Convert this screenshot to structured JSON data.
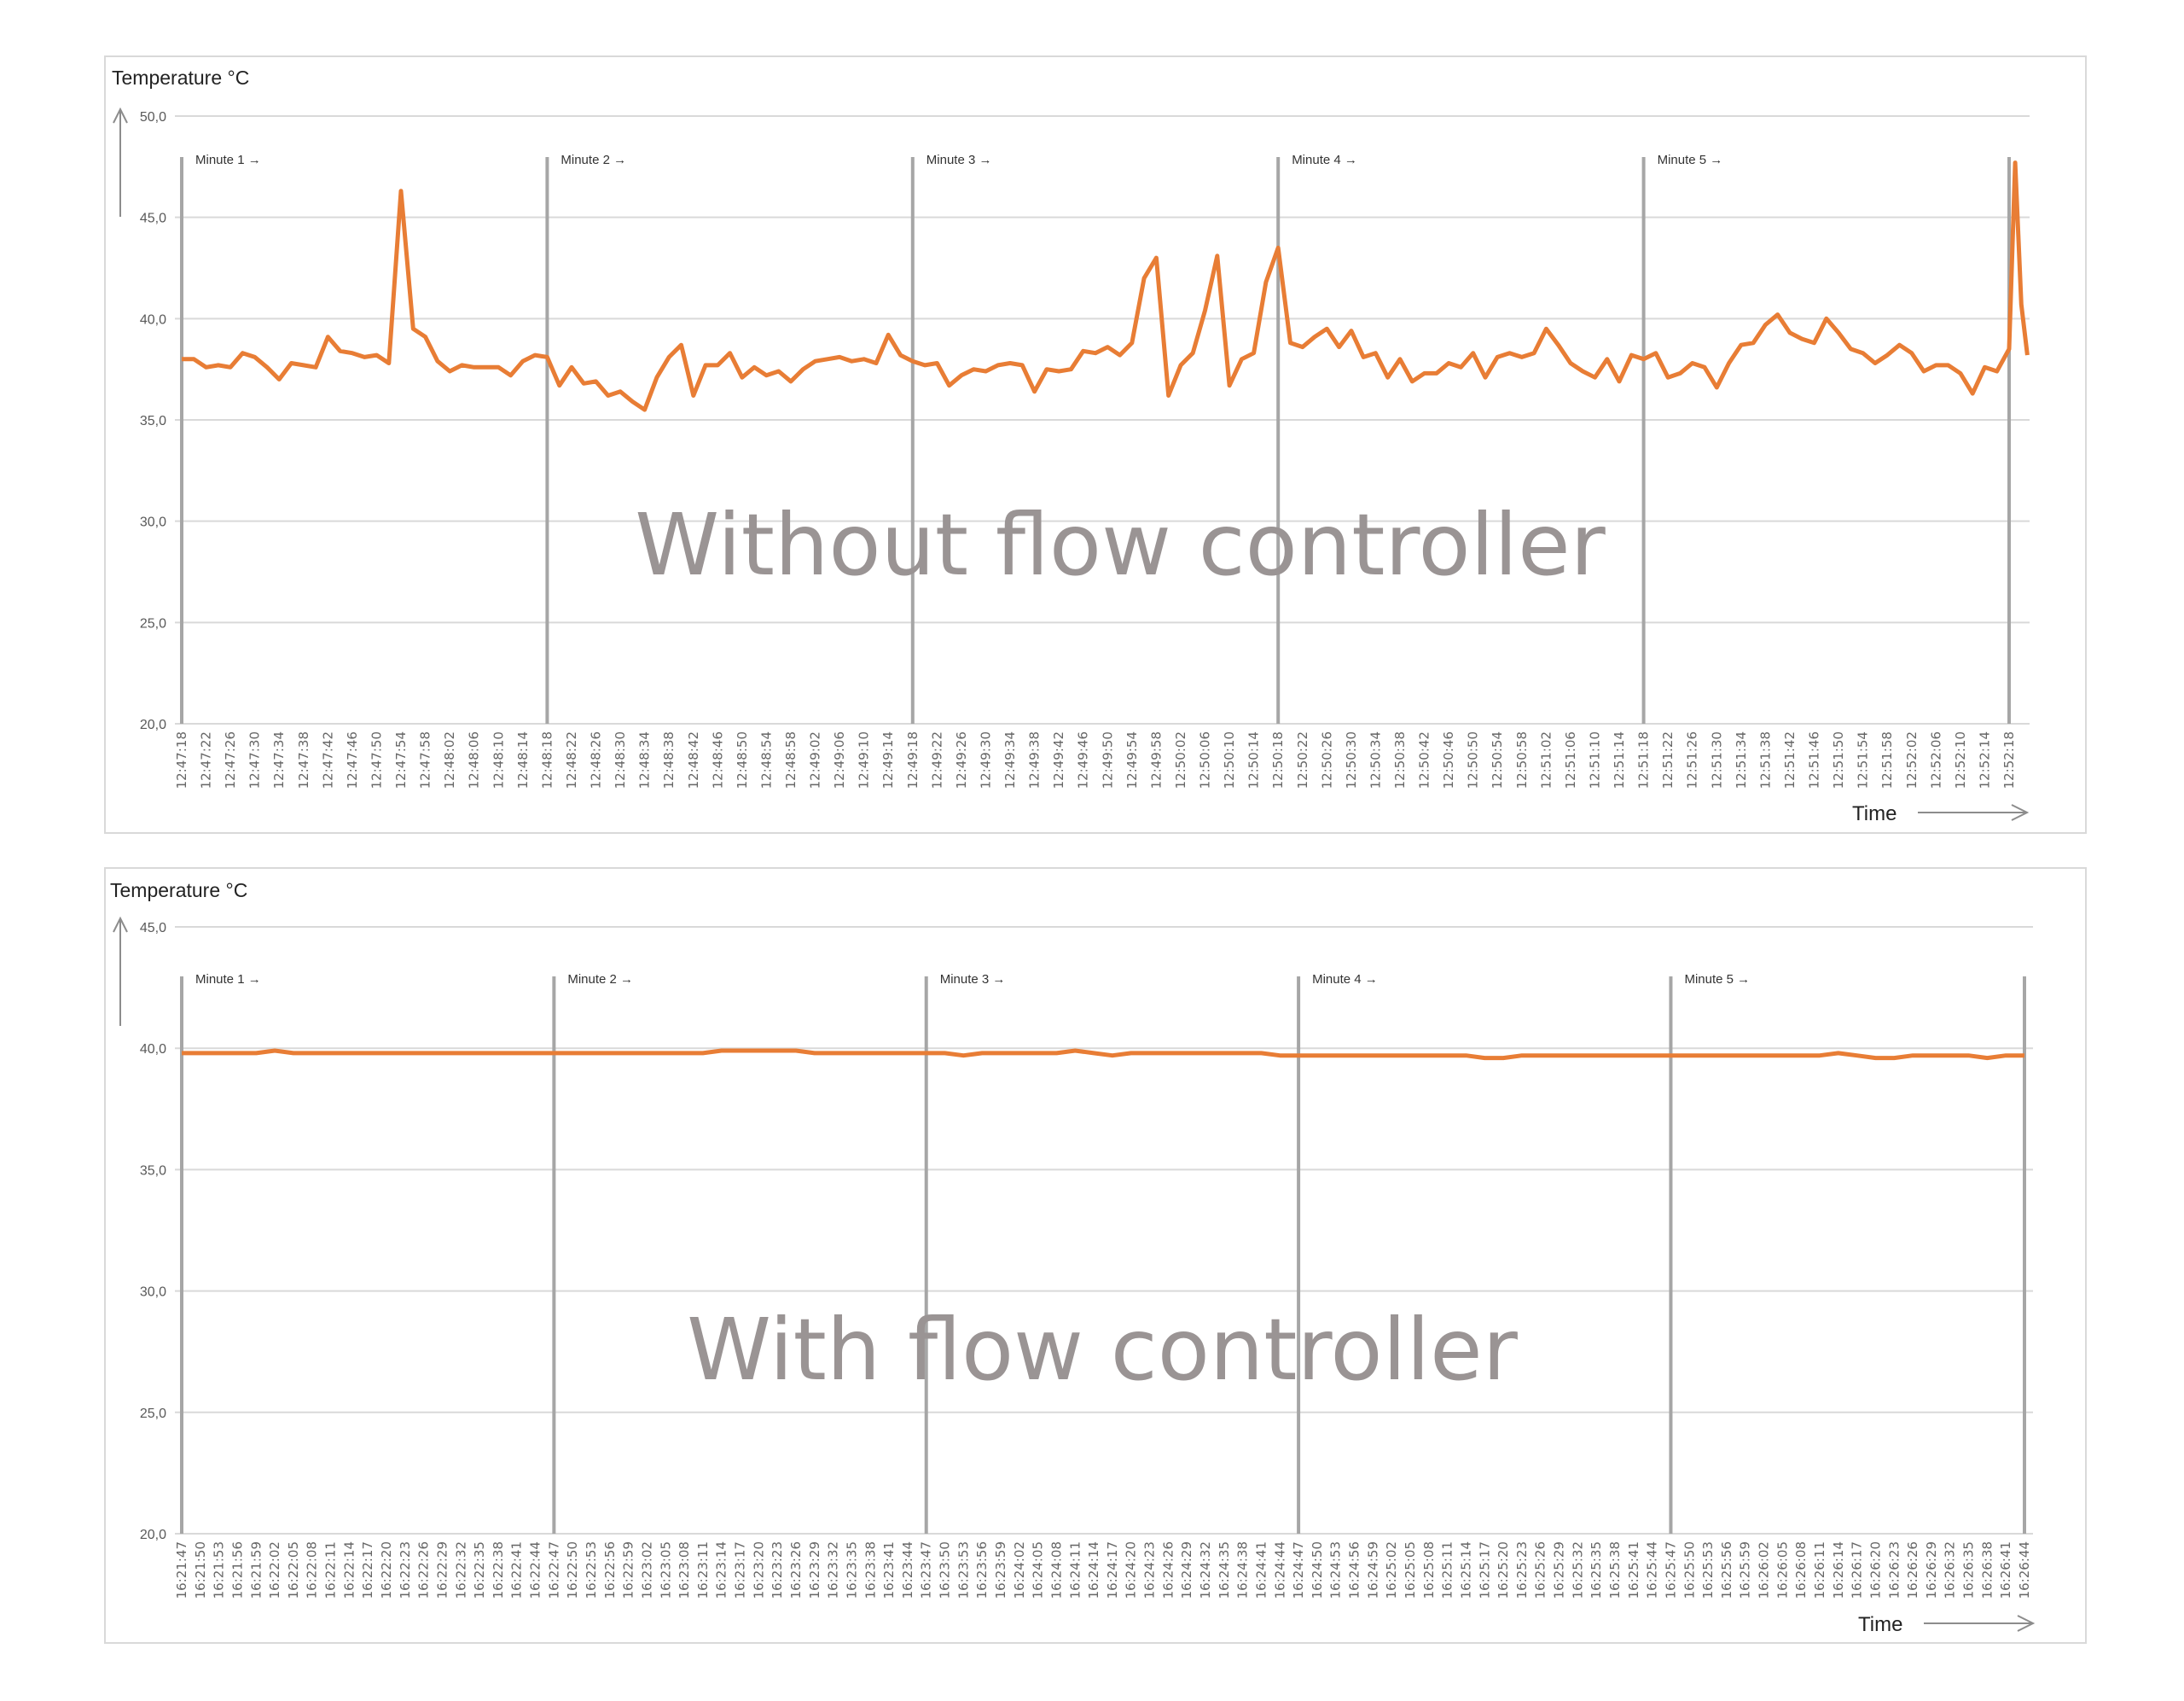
{
  "chart_data": [
    {
      "type": "line",
      "title": "Temperature °C",
      "annotation": "Without flow controller",
      "xlabel": "Time",
      "ylabel": "Temperature °C",
      "ylim": [
        20,
        50
      ],
      "yticks": [
        "20,0",
        "25,0",
        "30,0",
        "35,0",
        "40,0",
        "45,0",
        "50,0"
      ],
      "ytick_values": [
        20,
        25,
        30,
        35,
        40,
        45,
        50
      ],
      "grid": true,
      "line_color": "#E87D35",
      "xticks": [
        "12:47:18",
        "12:47:22",
        "12:47:26",
        "12:47:30",
        "12:47:34",
        "12:47:38",
        "12:47:42",
        "12:47:46",
        "12:47:50",
        "12:47:54",
        "12:47:58",
        "12:48:02",
        "12:48:06",
        "12:48:10",
        "12:48:14",
        "12:48:18",
        "12:48:22",
        "12:48:26",
        "12:48:30",
        "12:48:34",
        "12:48:38",
        "12:48:42",
        "12:48:46",
        "12:48:50",
        "12:48:54",
        "12:48:58",
        "12:49:02",
        "12:49:06",
        "12:49:10",
        "12:49:14",
        "12:49:18",
        "12:49:22",
        "12:49:26",
        "12:49:30",
        "12:49:34",
        "12:49:38",
        "12:49:42",
        "12:49:46",
        "12:49:50",
        "12:49:54",
        "12:49:58",
        "12:50:02",
        "12:50:06",
        "12:50:10",
        "12:50:14",
        "12:50:18",
        "12:50:22",
        "12:50:26",
        "12:50:30",
        "12:50:34",
        "12:50:38",
        "12:50:42",
        "12:50:46",
        "12:50:50",
        "12:50:54",
        "12:50:58",
        "12:51:02",
        "12:51:06",
        "12:51:10",
        "12:51:14",
        "12:51:18",
        "12:51:22",
        "12:51:26",
        "12:51:30",
        "12:51:34",
        "12:51:38",
        "12:51:42",
        "12:51:46",
        "12:51:50",
        "12:51:54",
        "12:51:58",
        "12:52:02",
        "12:52:06",
        "12:52:10",
        "12:52:14",
        "12:52:18"
      ],
      "markers": [
        {
          "x": "12:47:18",
          "label": "Minute 1 →"
        },
        {
          "x": "12:48:18",
          "label": "Minute 2 →"
        },
        {
          "x": "12:49:18",
          "label": "Minute 3 →"
        },
        {
          "x": "12:50:18",
          "label": "Minute 4 →"
        },
        {
          "x": "12:51:18",
          "label": "Minute 5 →"
        },
        {
          "x": "12:52:18",
          "label": ""
        }
      ],
      "x": [
        "12:47:18",
        "12:47:20",
        "12:47:22",
        "12:47:24",
        "12:47:26",
        "12:47:28",
        "12:47:30",
        "12:47:32",
        "12:47:34",
        "12:47:36",
        "12:47:38",
        "12:47:40",
        "12:47:42",
        "12:47:44",
        "12:47:46",
        "12:47:48",
        "12:47:50",
        "12:47:52",
        "12:47:54",
        "12:47:56",
        "12:47:58",
        "12:48:00",
        "12:48:02",
        "12:48:04",
        "12:48:06",
        "12:48:08",
        "12:48:10",
        "12:48:12",
        "12:48:14",
        "12:48:16",
        "12:48:18",
        "12:48:20",
        "12:48:22",
        "12:48:24",
        "12:48:26",
        "12:48:28",
        "12:48:30",
        "12:48:32",
        "12:48:34",
        "12:48:36",
        "12:48:38",
        "12:48:40",
        "12:48:42",
        "12:48:44",
        "12:48:46",
        "12:48:48",
        "12:48:50",
        "12:48:52",
        "12:48:54",
        "12:48:56",
        "12:48:58",
        "12:49:00",
        "12:49:02",
        "12:49:04",
        "12:49:06",
        "12:49:08",
        "12:49:10",
        "12:49:12",
        "12:49:14",
        "12:49:16",
        "12:49:18",
        "12:49:20",
        "12:49:22",
        "12:49:24",
        "12:49:26",
        "12:49:28",
        "12:49:30",
        "12:49:32",
        "12:49:34",
        "12:49:36",
        "12:49:38",
        "12:49:40",
        "12:49:42",
        "12:49:44",
        "12:49:46",
        "12:49:48",
        "12:49:50",
        "12:49:52",
        "12:49:54",
        "12:49:56",
        "12:49:58",
        "12:50:00",
        "12:50:02",
        "12:50:04",
        "12:50:06",
        "12:50:08",
        "12:50:10",
        "12:50:12",
        "12:50:14",
        "12:50:16",
        "12:50:18",
        "12:50:20",
        "12:50:22",
        "12:50:24",
        "12:50:26",
        "12:50:28",
        "12:50:30",
        "12:50:32",
        "12:50:34",
        "12:50:36",
        "12:50:38",
        "12:50:40",
        "12:50:42",
        "12:50:44",
        "12:50:46",
        "12:50:48",
        "12:50:50",
        "12:50:52",
        "12:50:54",
        "12:50:56",
        "12:50:58",
        "12:51:00",
        "12:51:02",
        "12:51:04",
        "12:51:06",
        "12:51:08",
        "12:51:10",
        "12:51:12",
        "12:51:14",
        "12:51:16",
        "12:51:18",
        "12:51:20",
        "12:51:22",
        "12:51:24",
        "12:51:26",
        "12:51:28",
        "12:51:30",
        "12:51:32",
        "12:51:34",
        "12:51:36",
        "12:51:38",
        "12:51:40",
        "12:51:42",
        "12:51:44",
        "12:51:46",
        "12:51:48",
        "12:51:50",
        "12:51:52",
        "12:51:54",
        "12:51:56",
        "12:51:58",
        "12:52:00",
        "12:52:02",
        "12:52:04",
        "12:52:06",
        "12:52:08",
        "12:52:10",
        "12:52:12",
        "12:52:14",
        "12:52:16",
        "12:52:18",
        "12:52:19",
        "12:52:20",
        "12:52:21"
      ],
      "values": [
        38.0,
        38.0,
        37.6,
        37.7,
        37.6,
        38.3,
        38.1,
        37.6,
        37.0,
        37.8,
        37.7,
        37.6,
        39.1,
        38.4,
        38.3,
        38.1,
        38.2,
        37.8,
        46.3,
        39.5,
        39.1,
        37.9,
        37.4,
        37.7,
        37.6,
        37.6,
        37.6,
        37.2,
        37.9,
        38.2,
        38.1,
        36.7,
        37.6,
        36.8,
        36.9,
        36.2,
        36.4,
        35.9,
        35.5,
        37.1,
        38.1,
        38.7,
        36.2,
        37.7,
        37.7,
        38.3,
        37.1,
        37.6,
        37.2,
        37.4,
        36.9,
        37.5,
        37.9,
        38.0,
        38.1,
        37.9,
        38.0,
        37.8,
        39.2,
        38.2,
        37.9,
        37.7,
        37.8,
        36.7,
        37.2,
        37.5,
        37.4,
        37.7,
        37.8,
        37.7,
        36.4,
        37.5,
        37.4,
        37.5,
        38.4,
        38.3,
        38.6,
        38.2,
        38.8,
        42.0,
        43.0,
        36.2,
        37.7,
        38.3,
        40.4,
        43.1,
        36.7,
        38.0,
        38.3,
        41.8,
        43.5,
        38.8,
        38.6,
        39.1,
        39.5,
        38.6,
        39.4,
        38.1,
        38.3,
        37.1,
        38.0,
        36.9,
        37.3,
        37.3,
        37.8,
        37.6,
        38.3,
        37.1,
        38.1,
        38.3,
        38.1,
        38.3,
        39.5,
        38.7,
        37.8,
        37.4,
        37.1,
        38.0,
        36.9,
        38.2,
        38.0,
        38.3,
        37.1,
        37.3,
        37.8,
        37.6,
        36.6,
        37.8,
        38.7,
        38.8,
        39.7,
        40.2,
        39.3,
        39.0,
        38.8,
        40.0,
        39.3,
        38.5,
        38.3,
        37.8,
        38.2,
        38.7,
        38.3,
        37.4,
        37.7,
        37.7,
        37.3,
        36.3,
        37.6,
        37.4,
        38.5,
        47.7,
        40.7,
        38.2
      ]
    },
    {
      "type": "line",
      "title": "Temperature °C",
      "annotation": "With flow controller",
      "xlabel": "Time",
      "ylabel": "Temperature °C",
      "ylim": [
        20,
        45
      ],
      "yticks": [
        "20,0",
        "25,0",
        "30,0",
        "35,0",
        "40,0",
        "45,0"
      ],
      "ytick_values": [
        20,
        25,
        30,
        35,
        40,
        45
      ],
      "grid": true,
      "line_color": "#E87D35",
      "xticks": [
        "16:21:47",
        "16:21:50",
        "16:21:53",
        "16:21:56",
        "16:21:59",
        "16:22:02",
        "16:22:05",
        "16:22:08",
        "16:22:11",
        "16:22:14",
        "16:22:17",
        "16:22:20",
        "16:22:23",
        "16:22:26",
        "16:22:29",
        "16:22:32",
        "16:22:35",
        "16:22:38",
        "16:22:41",
        "16:22:44",
        "16:22:47",
        "16:22:50",
        "16:22:53",
        "16:22:56",
        "16:22:59",
        "16:23:02",
        "16:23:05",
        "16:23:08",
        "16:23:11",
        "16:23:14",
        "16:23:17",
        "16:23:20",
        "16:23:23",
        "16:23:26",
        "16:23:29",
        "16:23:32",
        "16:23:35",
        "16:23:38",
        "16:23:41",
        "16:23:44",
        "16:23:47",
        "16:23:50",
        "16:23:53",
        "16:23:56",
        "16:23:59",
        "16:24:02",
        "16:24:05",
        "16:24:08",
        "16:24:11",
        "16:24:14",
        "16:24:17",
        "16:24:20",
        "16:24:23",
        "16:24:26",
        "16:24:29",
        "16:24:32",
        "16:24:35",
        "16:24:38",
        "16:24:41",
        "16:24:44",
        "16:24:47",
        "16:24:50",
        "16:24:53",
        "16:24:56",
        "16:24:59",
        "16:25:02",
        "16:25:05",
        "16:25:08",
        "16:25:11",
        "16:25:14",
        "16:25:17",
        "16:25:20",
        "16:25:23",
        "16:25:26",
        "16:25:29",
        "16:25:32",
        "16:25:35",
        "16:25:38",
        "16:25:41",
        "16:25:44",
        "16:25:47",
        "16:25:50",
        "16:25:53",
        "16:25:56",
        "16:25:59",
        "16:26:02",
        "16:26:05",
        "16:26:08",
        "16:26:11",
        "16:26:14",
        "16:26:17",
        "16:26:20",
        "16:26:23",
        "16:26:26",
        "16:26:29",
        "16:26:32",
        "16:26:35",
        "16:26:38",
        "16:26:41",
        "16:26:44"
      ],
      "markers": [
        {
          "x": "16:21:47",
          "label": "Minute 1 →"
        },
        {
          "x": "16:22:47",
          "label": "Minute 2 →"
        },
        {
          "x": "16:23:47",
          "label": "Minute 3 →"
        },
        {
          "x": "16:24:47",
          "label": "Minute 4 →"
        },
        {
          "x": "16:25:47",
          "label": "Minute 5 →"
        },
        {
          "x": "16:26:44",
          "label": ""
        }
      ],
      "values": [
        39.8,
        39.8,
        39.8,
        39.8,
        39.8,
        39.9,
        39.8,
        39.8,
        39.8,
        39.8,
        39.8,
        39.8,
        39.8,
        39.8,
        39.8,
        39.8,
        39.8,
        39.8,
        39.8,
        39.8,
        39.8,
        39.8,
        39.8,
        39.8,
        39.8,
        39.8,
        39.8,
        39.8,
        39.8,
        39.9,
        39.9,
        39.9,
        39.9,
        39.9,
        39.8,
        39.8,
        39.8,
        39.8,
        39.8,
        39.8,
        39.8,
        39.8,
        39.7,
        39.8,
        39.8,
        39.8,
        39.8,
        39.8,
        39.9,
        39.8,
        39.7,
        39.8,
        39.8,
        39.8,
        39.8,
        39.8,
        39.8,
        39.8,
        39.8,
        39.7,
        39.7,
        39.7,
        39.7,
        39.7,
        39.7,
        39.7,
        39.7,
        39.7,
        39.7,
        39.7,
        39.6,
        39.6,
        39.7,
        39.7,
        39.7,
        39.7,
        39.7,
        39.7,
        39.7,
        39.7,
        39.7,
        39.7,
        39.7,
        39.7,
        39.7,
        39.7,
        39.7,
        39.7,
        39.7,
        39.8,
        39.7,
        39.6,
        39.6,
        39.7,
        39.7,
        39.7,
        39.7,
        39.6,
        39.7,
        39.7
      ]
    }
  ]
}
